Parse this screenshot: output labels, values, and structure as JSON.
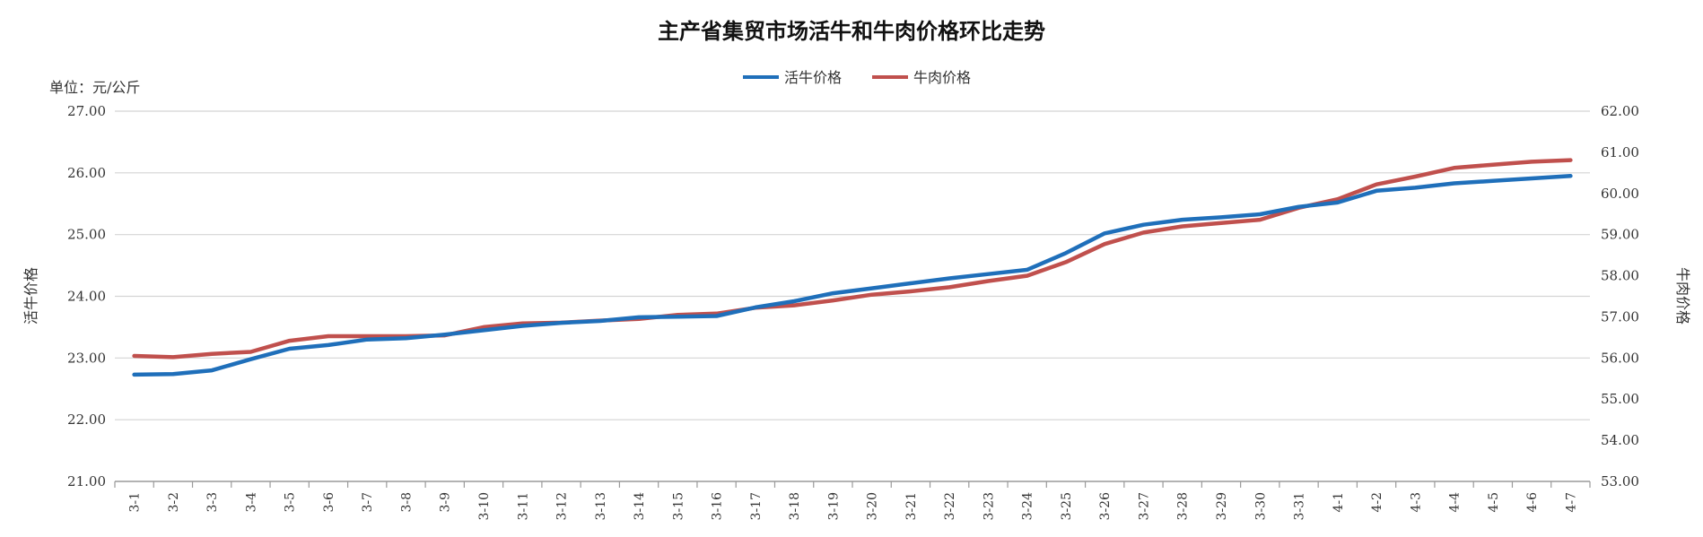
{
  "chart_data": {
    "type": "line",
    "title": "主产省集贸市场活牛和牛肉价格环比走势",
    "unit_label": "单位：元/公斤",
    "ylabel_left": "活牛价格",
    "ylabel_right": "牛肉价格",
    "ylim_left": [
      21,
      27
    ],
    "ylim_right": [
      53,
      62
    ],
    "yticks_left": [
      "21.00",
      "22.00",
      "23.00",
      "24.00",
      "25.00",
      "26.00",
      "27.00"
    ],
    "yticks_right": [
      "53.00",
      "54.00",
      "55.00",
      "56.00",
      "57.00",
      "58.00",
      "59.00",
      "60.00",
      "61.00",
      "62.00"
    ],
    "grid": true,
    "legend_position": "top-center",
    "categories": [
      "3-1",
      "3-2",
      "3-3",
      "3-4",
      "3-5",
      "3-6",
      "3-7",
      "3-8",
      "3-9",
      "3-10",
      "3-11",
      "3-12",
      "3-13",
      "3-14",
      "3-15",
      "3-16",
      "3-17",
      "3-18",
      "3-19",
      "3-20",
      "3-21",
      "3-22",
      "3-23",
      "3-24",
      "3-25",
      "3-26",
      "3-27",
      "3-28",
      "3-29",
      "3-30",
      "3-31",
      "4-1",
      "4-2",
      "4-3",
      "4-4",
      "4-5",
      "4-6",
      "4-7"
    ],
    "series": [
      {
        "name": "活牛价格",
        "axis": "left",
        "color": "#1f6fba",
        "values": [
          22.73,
          22.74,
          22.8,
          22.98,
          23.15,
          23.21,
          23.3,
          23.32,
          23.38,
          23.45,
          23.52,
          23.57,
          23.6,
          23.66,
          23.67,
          23.68,
          23.82,
          23.92,
          24.05,
          24.13,
          24.21,
          24.29,
          24.36,
          24.43,
          24.7,
          25.02,
          25.16,
          25.24,
          25.28,
          25.33,
          25.45,
          25.52,
          25.71,
          25.76,
          25.83,
          25.87,
          25.91,
          25.95
        ]
      },
      {
        "name": "牛肉价格",
        "axis": "right",
        "color": "#c0504d",
        "values": [
          56.05,
          56.02,
          56.1,
          56.15,
          56.42,
          56.53,
          56.53,
          56.53,
          56.55,
          56.75,
          56.84,
          56.86,
          56.91,
          56.95,
          57.05,
          57.08,
          57.22,
          57.28,
          57.4,
          57.54,
          57.62,
          57.72,
          57.87,
          58.0,
          58.33,
          58.77,
          59.05,
          59.2,
          59.28,
          59.36,
          59.65,
          59.86,
          60.22,
          60.41,
          60.62,
          60.7,
          60.77,
          60.81
        ]
      }
    ]
  }
}
